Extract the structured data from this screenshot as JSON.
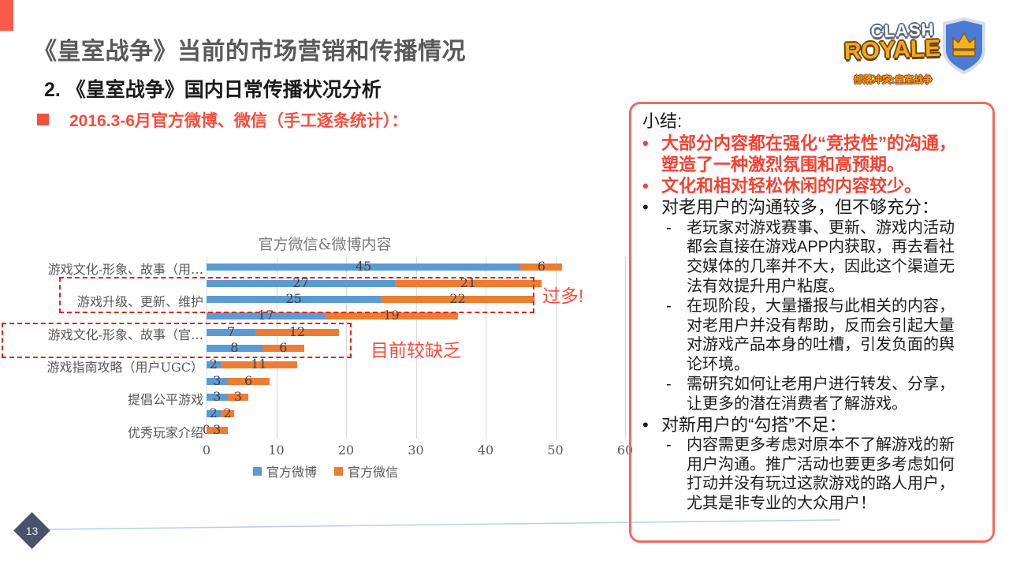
{
  "slide": {
    "title": "《皇室战争》当前的市场营销和传播情况",
    "subtitle": "2. 《皇室战争》国内日常传播状况分析",
    "bullet": "2016.3-6月官方微博、微信（手工逐条统计）：",
    "page_number": "13"
  },
  "logo": {
    "line1": "CLASH",
    "line2": "ROYALE",
    "tagline": "部落冲突:皇室战争"
  },
  "chart_data": {
    "type": "bar",
    "orientation": "horizontal-stacked",
    "title": "官方微信&微博内容",
    "categories": [
      "游戏文化-形象、故事（用…",
      "",
      "游戏升级、更新、维护",
      "",
      "游戏文化-形象、故事（官…",
      "",
      "游戏指南攻略（用户UGC）",
      "",
      "提倡公平游戏",
      "",
      "优秀玩家介绍"
    ],
    "series": [
      {
        "name": "官方微博",
        "color": "#5B9BD5",
        "values": [
          45,
          27,
          25,
          17,
          7,
          8,
          2,
          3,
          3,
          2,
          0
        ]
      },
      {
        "name": "官方微信",
        "color": "#ED7D31",
        "values": [
          6,
          21,
          22,
          19,
          12,
          6,
          11,
          6,
          3,
          2,
          3
        ]
      }
    ],
    "xlim": [
      0,
      60
    ],
    "xticks": [
      0,
      10,
      20,
      30,
      40,
      50,
      60
    ],
    "grid": "vertical",
    "legend_position": "bottom"
  },
  "annotations": {
    "too_many": "过多!",
    "lacking": "目前较缺乏"
  },
  "panel": {
    "heading": "小结:",
    "items": [
      {
        "level": 1,
        "style": "red",
        "marker": "•",
        "text": "大部分内容都在强化“竞技性”的沟通，塑造了一种激烈氛围和高预期。"
      },
      {
        "level": 1,
        "style": "red",
        "marker": "•",
        "text": "文化和相对轻松休闲的内容较少。"
      },
      {
        "level": 1,
        "style": "black",
        "marker": "•",
        "text": "对老用户的沟通较多，但不够充分："
      },
      {
        "level": 2,
        "style": "black",
        "marker": "-",
        "text": "老玩家对游戏赛事、更新、游戏内活动都会直接在游戏APP内获取，再去看社交媒体的几率并不大，因此这个渠道无法有效提升用户粘度。"
      },
      {
        "level": 2,
        "style": "black",
        "marker": "-",
        "text": "在现阶段，大量播报与此相关的内容，对老用户并没有帮助，反而会引起大量对游戏产品本身的吐槽，引发负面的舆论环境。"
      },
      {
        "level": 2,
        "style": "black",
        "marker": "-",
        "text": "需研究如何让老用户进行转发、分享，让更多的潜在消费者了解游戏。"
      },
      {
        "level": 1,
        "style": "black",
        "marker": "•",
        "text": "对新用户的“勾搭”不足："
      },
      {
        "level": 2,
        "style": "black",
        "marker": "-",
        "text": "内容需更多考虑对原本不了解游戏的新用户沟通。推广活动也要更多考虑如何打动并没有玩过这款游戏的路人用户，尤其是非专业的大众用户！"
      }
    ]
  },
  "colors": {
    "accent": "#F95B4A",
    "weibo_blue": "#5B9BD5",
    "weixin_orange": "#ED7D31",
    "dashed_red": "#E0241B",
    "annotation_red": "#FB4B3A",
    "panel_border": "#F4695B",
    "red_text": "#F8402F",
    "diamond": "#47536B",
    "footer_line": "#B5CFE9"
  }
}
